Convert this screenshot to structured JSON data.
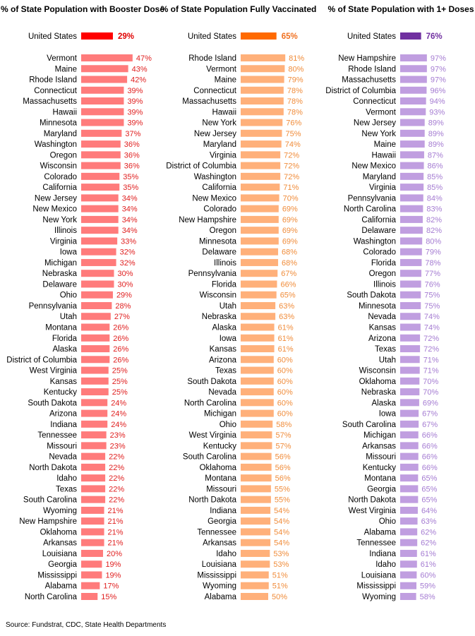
{
  "source": "Source: Fundstrat, CDC, State Health Departments",
  "chart_data": [
    {
      "type": "bar",
      "orientation": "horizontal",
      "title": "% of State Population with Booster Dose",
      "value_suffix": "%",
      "colors": {
        "bar": "#ff7b7b",
        "highlight": "#ff0000",
        "label": "#e02020",
        "highlight_label": "#e00000"
      },
      "highlight": {
        "category": "United States",
        "value": 29
      },
      "categories": [
        "Vermont",
        "Maine",
        "Rhode Island",
        "Connecticut",
        "Massachusetts",
        "Hawaii",
        "Minnesota",
        "Maryland",
        "Washington",
        "Oregon",
        "Wisconsin",
        "Colorado",
        "California",
        "New Jersey",
        "New Mexico",
        "New York",
        "Illinois",
        "Virginia",
        "Iowa",
        "Michigan",
        "Nebraska",
        "Delaware",
        "Ohio",
        "Pennsylvania",
        "Utah",
        "Montana",
        "Florida",
        "Alaska",
        "District of Columbia",
        "West Virginia",
        "Kansas",
        "Kentucky",
        "South Dakota",
        "Arizona",
        "Indiana",
        "Tennessee",
        "Missouri",
        "Nevada",
        "North Dakota",
        "Idaho",
        "Texas",
        "South Carolina",
        "Wyoming",
        "New Hampshire",
        "Oklahoma",
        "Arkansas",
        "Louisiana",
        "Georgia",
        "Mississippi",
        "Alabama",
        "North Carolina"
      ],
      "values": [
        47,
        43,
        42,
        39,
        39,
        39,
        39,
        37,
        36,
        36,
        36,
        35,
        35,
        34,
        34,
        34,
        34,
        33,
        32,
        32,
        30,
        30,
        29,
        28,
        27,
        26,
        26,
        26,
        26,
        25,
        25,
        25,
        24,
        24,
        24,
        23,
        23,
        22,
        22,
        22,
        22,
        22,
        21,
        21,
        21,
        21,
        20,
        19,
        19,
        17,
        15
      ]
    },
    {
      "type": "bar",
      "orientation": "horizontal",
      "title": "% of State Population Fully Vaccinated",
      "value_suffix": "%",
      "colors": {
        "bar": "#ffb07a",
        "highlight": "#ff6a00",
        "label": "#f08c3a",
        "highlight_label": "#f07020"
      },
      "highlight": {
        "category": "United States",
        "value": 65
      },
      "categories": [
        "Rhode Island",
        "Vermont",
        "Maine",
        "Connecticut",
        "Massachusetts",
        "Hawaii",
        "New York",
        "New Jersey",
        "Maryland",
        "Virginia",
        "District of Columbia",
        "Washington",
        "California",
        "New Mexico",
        "Colorado",
        "New Hampshire",
        "Oregon",
        "Minnesota",
        "Delaware",
        "Illinois",
        "Pennsylvania",
        "Florida",
        "Wisconsin",
        "Utah",
        "Nebraska",
        "Alaska",
        "Iowa",
        "Kansas",
        "Arizona",
        "Texas",
        "South Dakota",
        "Nevada",
        "North Carolina",
        "Michigan",
        "Ohio",
        "West Virginia",
        "Kentucky",
        "South Carolina",
        "Oklahoma",
        "Montana",
        "Missouri",
        "North Dakota",
        "Indiana",
        "Georgia",
        "Tennessee",
        "Arkansas",
        "Idaho",
        "Louisiana",
        "Mississippi",
        "Wyoming",
        "Alabama"
      ],
      "values": [
        81,
        80,
        79,
        78,
        78,
        78,
        76,
        75,
        74,
        72,
        72,
        72,
        71,
        70,
        69,
        69,
        69,
        69,
        68,
        68,
        67,
        66,
        65,
        63,
        63,
        61,
        61,
        61,
        60,
        60,
        60,
        60,
        60,
        60,
        58,
        57,
        57,
        56,
        56,
        56,
        55,
        55,
        54,
        54,
        54,
        54,
        53,
        53,
        51,
        51,
        50
      ]
    },
    {
      "type": "bar",
      "orientation": "horizontal",
      "title": "% of State Population with 1+ Doses",
      "value_suffix": "%",
      "colors": {
        "bar": "#c09ee0",
        "highlight": "#7030a0",
        "label": "#a57cd2",
        "highlight_label": "#7030a0"
      },
      "highlight": {
        "category": "United States",
        "value": 76
      },
      "categories": [
        "New Hampshire",
        "Rhode Island",
        "Massachusetts",
        "District of Columbia",
        "Connecticut",
        "Vermont",
        "New Jersey",
        "New York",
        "Maine",
        "Hawaii",
        "New Mexico",
        "Maryland",
        "Virginia",
        "Pennsylvania",
        "North Carolina",
        "California",
        "Delaware",
        "Washington",
        "Colorado",
        "Florida",
        "Oregon",
        "Illinois",
        "South Dakota",
        "Minnesota",
        "Nevada",
        "Kansas",
        "Arizona",
        "Texas",
        "Utah",
        "Wisconsin",
        "Oklahoma",
        "Nebraska",
        "Alaska",
        "Iowa",
        "South Carolina",
        "Michigan",
        "Arkansas",
        "Missouri",
        "Kentucky",
        "Montana",
        "Georgia",
        "North Dakota",
        "West Virginia",
        "Ohio",
        "Alabama",
        "Tennessee",
        "Indiana",
        "Idaho",
        "Louisiana",
        "Mississippi",
        "Wyoming"
      ],
      "values": [
        97,
        97,
        97,
        96,
        94,
        93,
        89,
        89,
        89,
        87,
        86,
        85,
        85,
        84,
        83,
        82,
        82,
        80,
        79,
        78,
        77,
        76,
        75,
        75,
        74,
        74,
        72,
        72,
        71,
        71,
        70,
        70,
        69,
        67,
        67,
        66,
        66,
        66,
        66,
        65,
        65,
        65,
        64,
        63,
        62,
        62,
        61,
        61,
        60,
        59,
        58
      ]
    }
  ]
}
